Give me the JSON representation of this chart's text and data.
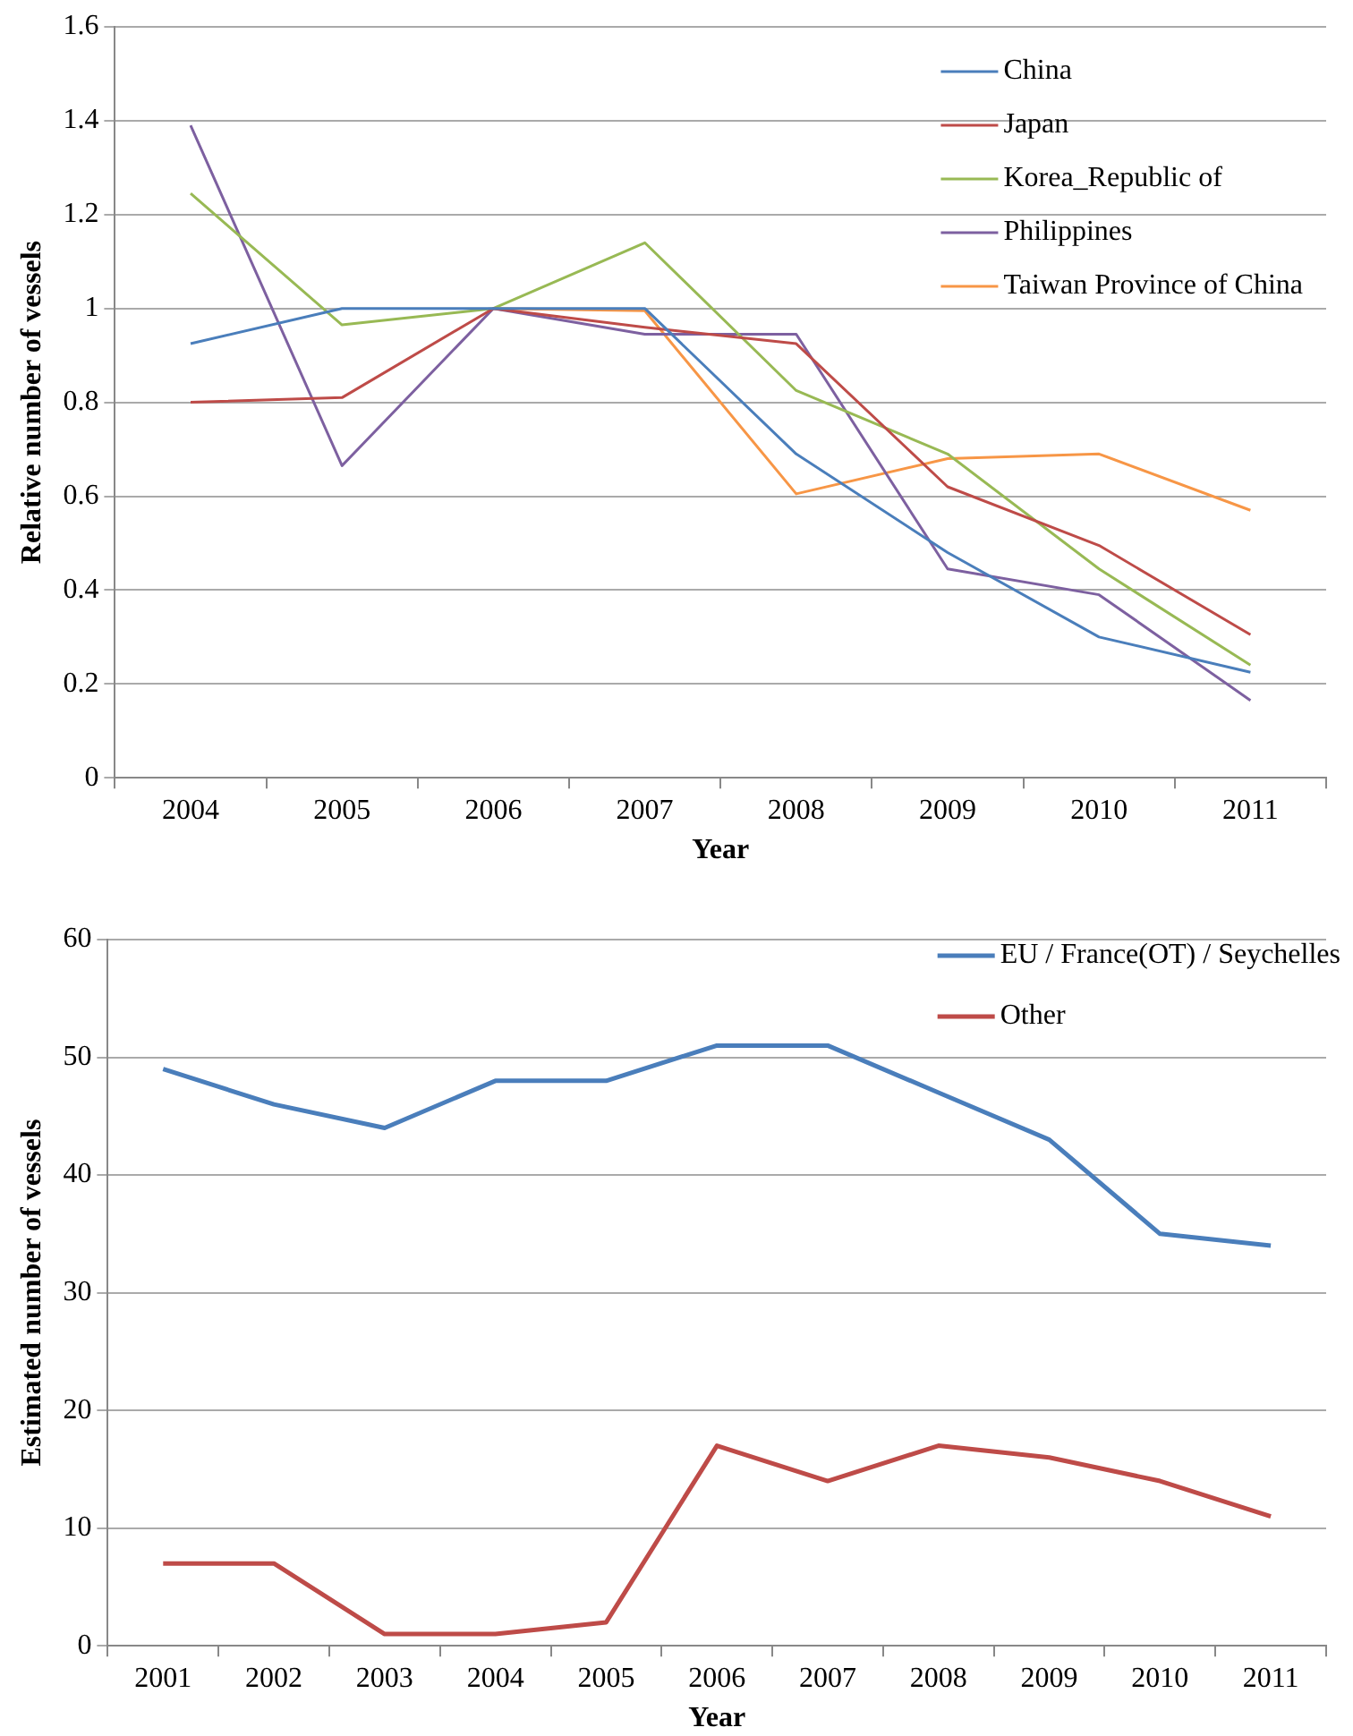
{
  "chart_data": [
    {
      "type": "line",
      "xlabel": "Year",
      "ylabel": "Relative number of vessels",
      "categories": [
        "2004",
        "2005",
        "2006",
        "2007",
        "2008",
        "2009",
        "2010",
        "2011"
      ],
      "series": [
        {
          "name": "China",
          "color": "#4a7ebb",
          "values": [
            0.925,
            1.0,
            1.0,
            1.0,
            0.69,
            0.48,
            0.3,
            0.225
          ]
        },
        {
          "name": "Japan",
          "color": "#be4b48",
          "values": [
            0.8,
            0.81,
            1.0,
            0.96,
            0.925,
            0.62,
            0.495,
            0.305
          ]
        },
        {
          "name": "Korea_Republic of",
          "color": "#98b954",
          "values": [
            1.245,
            0.965,
            1.0,
            1.14,
            0.825,
            0.69,
            0.445,
            0.24
          ]
        },
        {
          "name": "Philippines",
          "color": "#7d60a0",
          "values": [
            1.39,
            0.665,
            1.0,
            0.945,
            0.945,
            0.445,
            0.39,
            0.165
          ]
        },
        {
          "name": "Taiwan Province of China",
          "color": "#f79646",
          "values": [
            null,
            null,
            1.0,
            0.995,
            0.605,
            0.68,
            0.69,
            0.57
          ]
        }
      ],
      "ylim": [
        0,
        1.6
      ],
      "yticks": [
        0,
        0.2,
        0.4,
        0.6,
        0.8,
        1,
        1.2,
        1.4,
        1.6
      ],
      "grid": "y",
      "legend": "top right",
      "marker": "none"
    },
    {
      "type": "line",
      "xlabel": "Year",
      "ylabel": "Estimated number of vessels",
      "categories": [
        "2001",
        "2002",
        "2003",
        "2004",
        "2005",
        "2006",
        "2007",
        "2008",
        "2009",
        "2010",
        "2011"
      ],
      "series": [
        {
          "name": "EU / France(OT) / Seychelles",
          "color": "#4a7ebb",
          "values": [
            49,
            46,
            44,
            48,
            48,
            51,
            51,
            47,
            43,
            35,
            34
          ]
        },
        {
          "name": "Other",
          "color": "#be4b48",
          "values": [
            7,
            7,
            1,
            1,
            2,
            17,
            14,
            17,
            16,
            14,
            11
          ]
        }
      ],
      "ylim": [
        0,
        60
      ],
      "yticks": [
        0,
        10,
        20,
        30,
        40,
        50,
        60
      ],
      "grid": "y",
      "legend": "top right",
      "marker": "none"
    }
  ]
}
